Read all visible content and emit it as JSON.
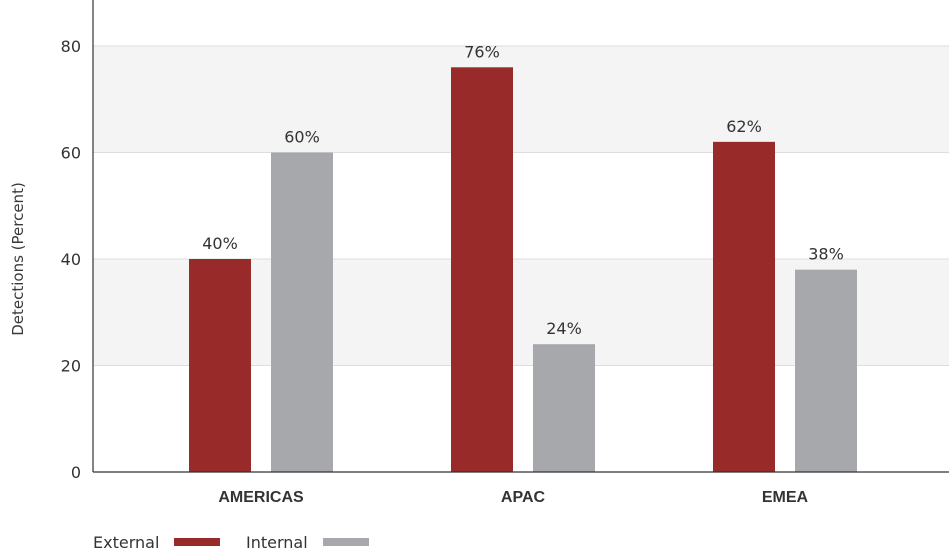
{
  "chart_data": {
    "type": "bar",
    "title": "",
    "xlabel": "",
    "ylabel": "Detections (Percent)",
    "ylim": [
      0,
      86
    ],
    "yticks": [
      0,
      20,
      40,
      60,
      80
    ],
    "categories": [
      "AMERICAS",
      "APAC",
      "EMEA"
    ],
    "series": [
      {
        "name": "External",
        "values": [
          40,
          76,
          62
        ],
        "labels": [
          "40%",
          "76%",
          "62%"
        ],
        "color": "#992a2a"
      },
      {
        "name": "Internal",
        "values": [
          60,
          24,
          38
        ],
        "labels": [
          "60%",
          "24%",
          "38%"
        ],
        "color": "#a7a8ab"
      }
    ],
    "grid": true,
    "band_color": "#f4f4f4",
    "legend_position": "bottom-left"
  }
}
